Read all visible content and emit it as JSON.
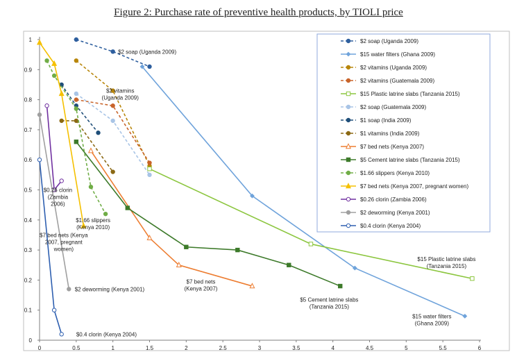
{
  "chart_data": {
    "type": "line",
    "title": "Figure 2: Purchase rate of preventive health products, by TIOLI price",
    "xlabel": "",
    "ylabel": "",
    "xlim": [
      0,
      6
    ],
    "ylim": [
      0,
      1
    ],
    "xticks": [
      "0",
      "0.5",
      "1",
      "1.5",
      "2",
      "2.5",
      "3",
      "3.5",
      "4",
      "4.5",
      "5",
      "5.5",
      "6"
    ],
    "yticks": [
      "0",
      "0.1",
      "0.2",
      "0.3",
      "0.4",
      "0.5",
      "0.6",
      "0.7",
      "0.8",
      "0.9",
      "1"
    ],
    "legend_position": "top-right",
    "series": [
      {
        "name": "$2 soap (Uganda 2009)",
        "color": "#2e5f9e",
        "dash": true,
        "marker": "circle",
        "x": [
          0.5,
          1.0,
          1.5
        ],
        "y": [
          1.0,
          0.96,
          0.91
        ]
      },
      {
        "name": "$15 water filters (Ghana 2009)",
        "color": "#6fa3db",
        "dash": false,
        "marker": "diamond",
        "x": [
          1.4,
          2.9,
          4.3,
          5.8
        ],
        "y": [
          0.91,
          0.48,
          0.24,
          0.08
        ]
      },
      {
        "name": "$2 vitamins (Uganda 2009)",
        "color": "#b8860b",
        "dash": true,
        "marker": "circle",
        "x": [
          0.5,
          1.0,
          1.5
        ],
        "y": [
          0.93,
          0.83,
          0.58
        ]
      },
      {
        "name": "$2 vitamins (Guatemala 2009)",
        "color": "#c8642a",
        "dash": true,
        "marker": "circle",
        "x": [
          0.5,
          1.0,
          1.5
        ],
        "y": [
          0.8,
          0.78,
          0.59
        ]
      },
      {
        "name": "$15 Plastic latrine slabs (Tanzania 2015)",
        "color": "#8cc63f",
        "dash": false,
        "marker": "square-open",
        "x": [
          1.5,
          3.7,
          5.9
        ],
        "y": [
          0.57,
          0.32,
          0.205
        ]
      },
      {
        "name": "$2 soap (Guatemala 2009)",
        "color": "#a8c4e6",
        "dash": true,
        "marker": "circle",
        "x": [
          0.5,
          1.0,
          1.5
        ],
        "y": [
          0.82,
          0.73,
          0.55
        ]
      },
      {
        "name": "$1 soap (India 2009)",
        "color": "#1f4e79",
        "dash": true,
        "marker": "circle",
        "x": [
          0.3,
          0.5,
          0.8
        ],
        "y": [
          0.85,
          0.78,
          0.69
        ]
      },
      {
        "name": "$1 vitamins (India 2009)",
        "color": "#8b6914",
        "dash": true,
        "marker": "circle",
        "x": [
          0.3,
          0.5,
          1.0
        ],
        "y": [
          0.73,
          0.73,
          0.56
        ]
      },
      {
        "name": "$7 bed nets (Kenya 2007)",
        "color": "#ed7d31",
        "dash": false,
        "marker": "triangle-open",
        "x": [
          0.7,
          1.5,
          1.9,
          2.9
        ],
        "y": [
          0.63,
          0.34,
          0.25,
          0.18
        ]
      },
      {
        "name": "$5 Cement latrine slabs (Tanzania 2015)",
        "color": "#3d7a2a",
        "dash": false,
        "marker": "square",
        "x": [
          0.5,
          1.2,
          2.0,
          2.7,
          3.4,
          4.1
        ],
        "y": [
          0.66,
          0.44,
          0.31,
          0.3,
          0.25,
          0.18
        ]
      },
      {
        "name": "$1.66 slippers (Kenya 2010)",
        "color": "#70ad47",
        "dash": true,
        "marker": "circle",
        "x": [
          0.1,
          0.2,
          0.5,
          0.7,
          0.9
        ],
        "y": [
          0.93,
          0.88,
          0.77,
          0.51,
          0.42
        ]
      },
      {
        "name": "$7 bed nets (Kenya 2007, pregnant women)",
        "color": "#f5c000",
        "dash": false,
        "marker": "triangle",
        "x": [
          0.0,
          0.2,
          0.3,
          0.6
        ],
        "y": [
          0.99,
          0.92,
          0.82,
          0.38
        ]
      },
      {
        "name": "$0.26 clorin (Zambia 2006)",
        "color": "#7030a0",
        "dash": false,
        "marker": "circle-open",
        "x": [
          0.1,
          0.2,
          0.3
        ],
        "y": [
          0.78,
          0.5,
          0.53
        ]
      },
      {
        "name": "$2 deworming (Kenya 2001)",
        "color": "#a0a0a0",
        "dash": false,
        "marker": "circle",
        "x": [
          0.0,
          0.4
        ],
        "y": [
          0.75,
          0.17
        ]
      },
      {
        "name": "$0.4 clorin (Kenya 2004)",
        "color": "#2e5fb0",
        "dash": false,
        "marker": "circle-open",
        "x": [
          0.0,
          0.2,
          0.3
        ],
        "y": [
          0.6,
          0.1,
          0.02
        ]
      }
    ],
    "annotations": [
      {
        "lines": [
          "$2 soap (Uganda 2009)"
        ],
        "x": 1.07,
        "y": 0.96
      },
      {
        "lines": [
          "$2 vitamins",
          "(Uganda 2009)"
        ],
        "x": 1.1,
        "y": 0.83
      },
      {
        "lines": [
          "$0.26 clorin",
          "(Zambia",
          "2006)"
        ],
        "x": 0.25,
        "y": 0.5
      },
      {
        "lines": [
          "$1.66 slippers",
          "(Kenya 2010)"
        ],
        "x": 0.73,
        "y": 0.4
      },
      {
        "lines": [
          "$7 bed nets (Kenya",
          "2007, pregnant",
          "women)"
        ],
        "x": 0.33,
        "y": 0.35
      },
      {
        "lines": [
          "$2 deworming (Kenya 2001)"
        ],
        "x": 0.48,
        "y": 0.17
      },
      {
        "lines": [
          "$0.4 clorin (Kenya 2004)"
        ],
        "x": 0.5,
        "y": 0.02
      },
      {
        "lines": [
          "$7 bed nets",
          "(Kenya 2007)"
        ],
        "x": 2.2,
        "y": 0.195
      },
      {
        "lines": [
          "$5 Cement latrine slabs",
          "(Tanzania 2015)"
        ],
        "x": 3.95,
        "y": 0.135
      },
      {
        "lines": [
          "$15 Plastic latrine slabs",
          "(Tanzania 2015)"
        ],
        "x": 5.55,
        "y": 0.27
      },
      {
        "lines": [
          "$15 water filters",
          "(Ghana 2009)"
        ],
        "x": 5.35,
        "y": 0.08
      }
    ]
  }
}
